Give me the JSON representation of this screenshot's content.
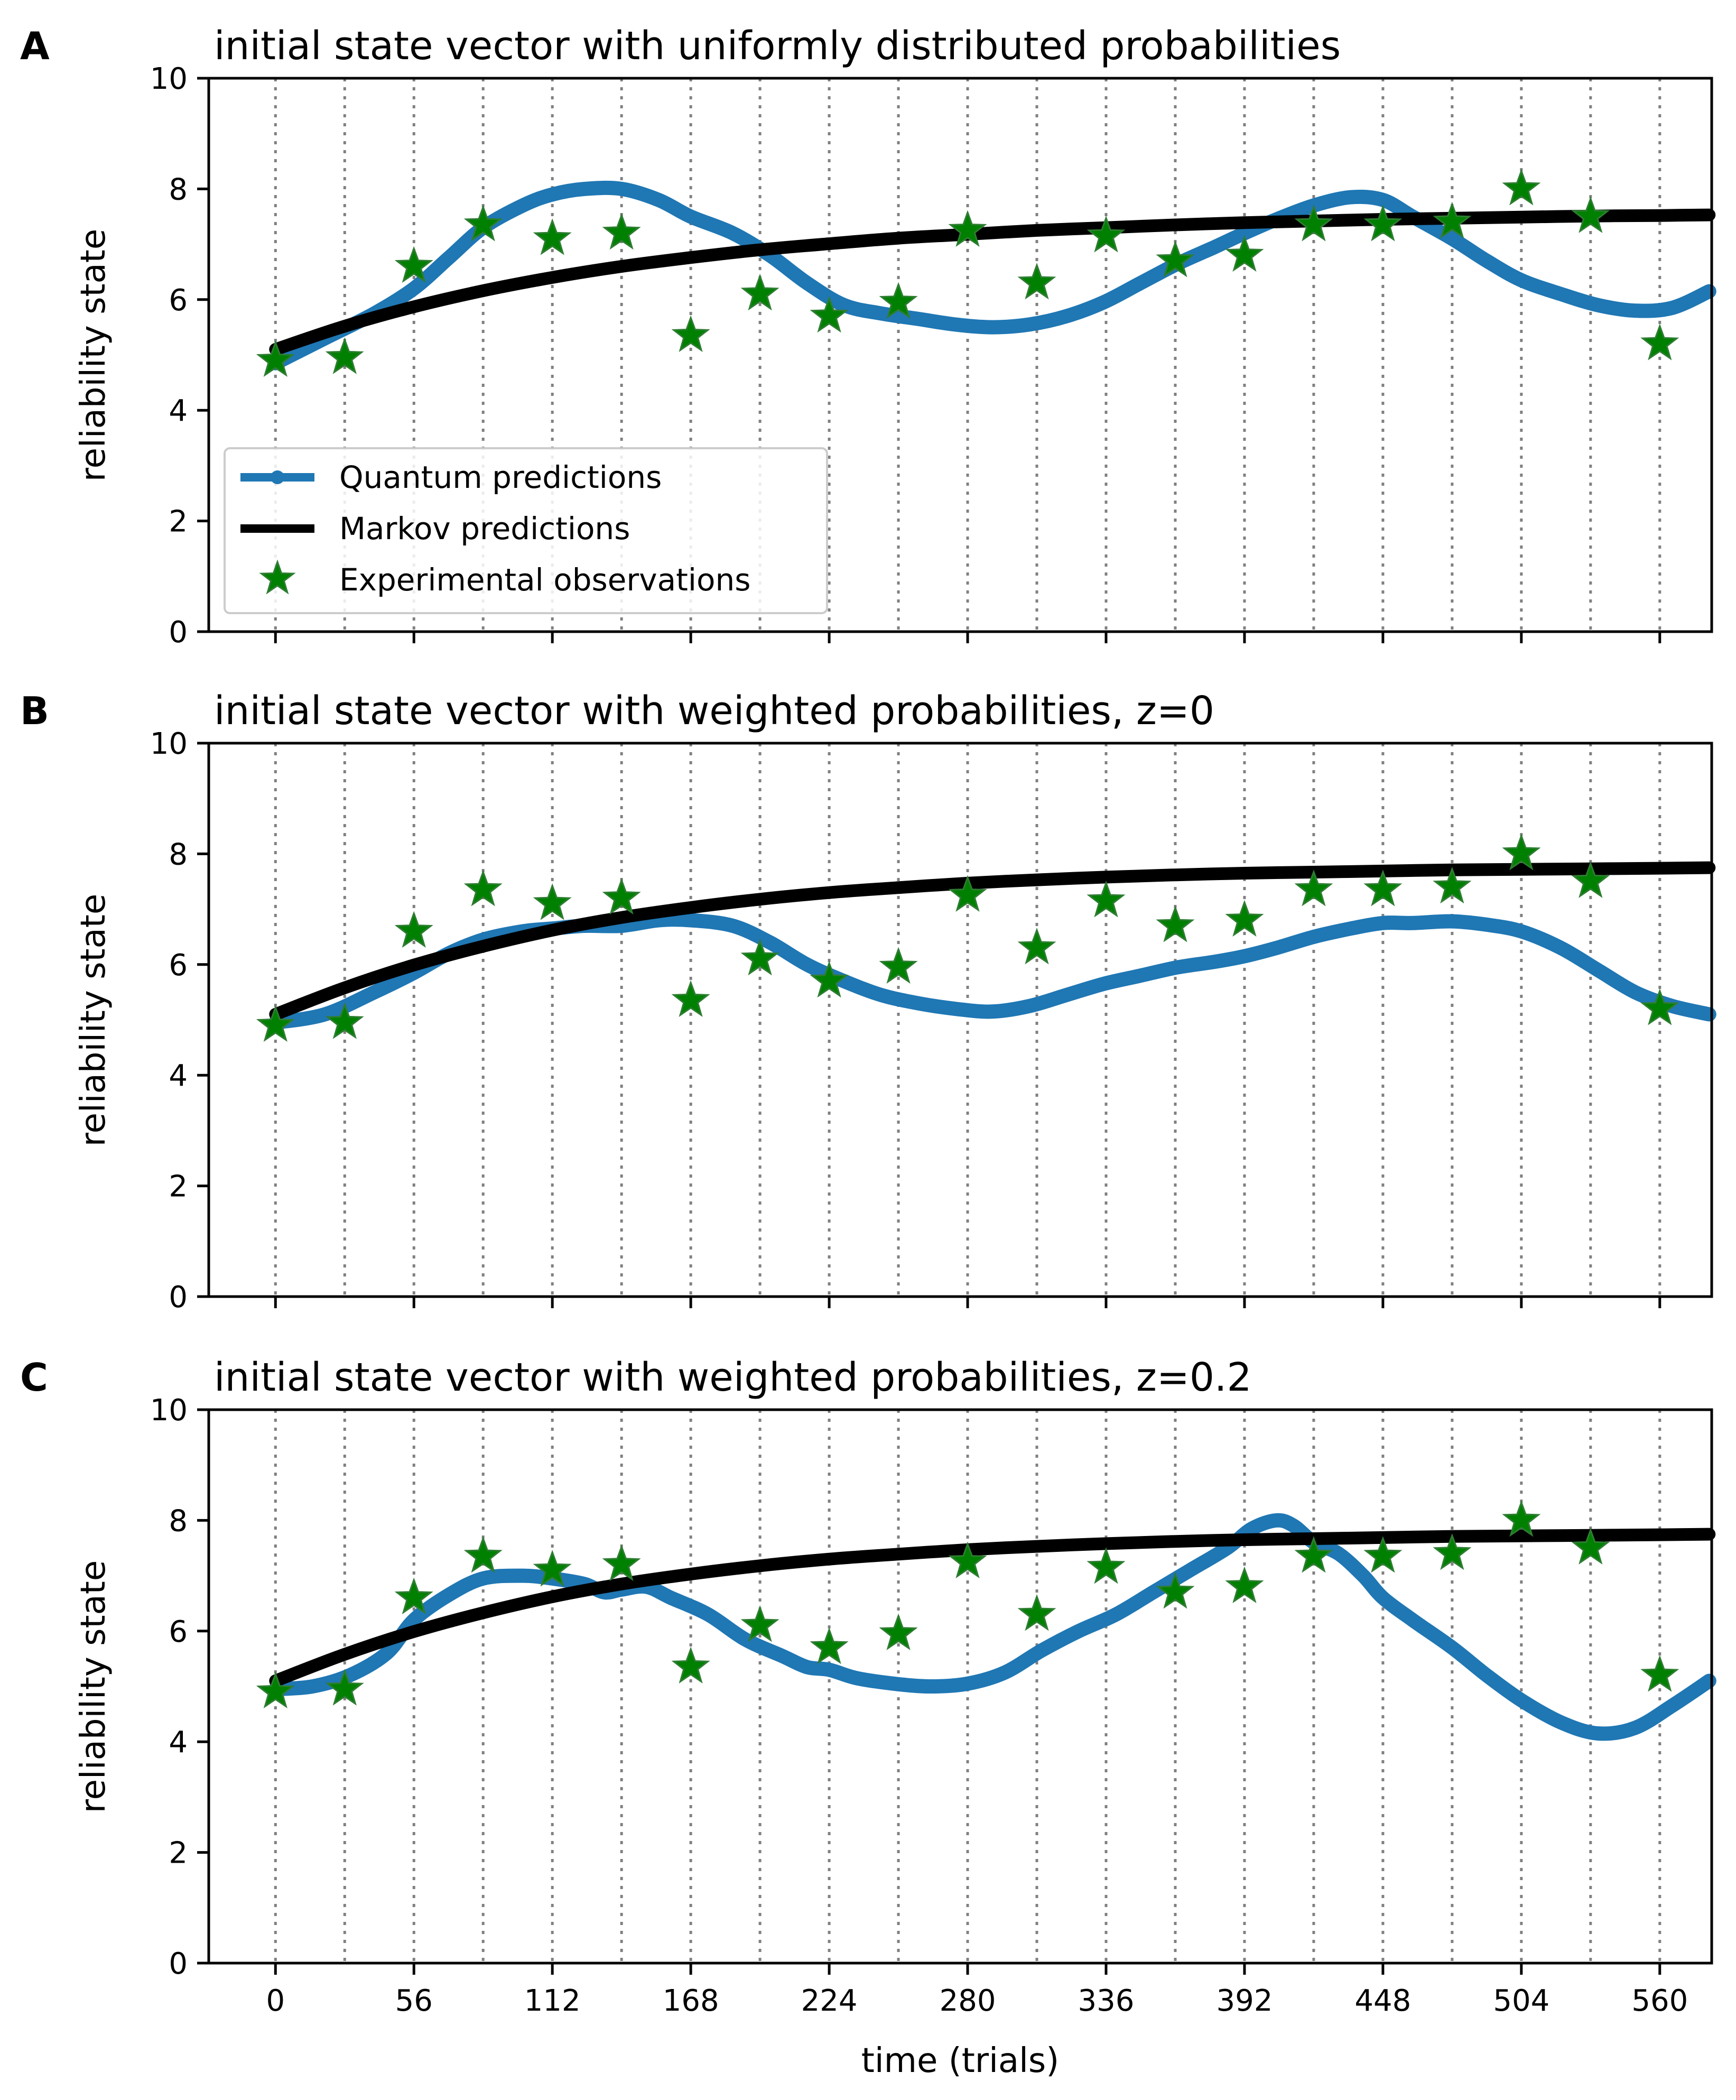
{
  "chart_data": [
    {
      "panel": "A",
      "type": "line",
      "title": "initial state vector with uniformly distributed probabilities",
      "xlabel": "",
      "ylabel": "reliability state",
      "xlim": [
        -27,
        581
      ],
      "ylim": [
        0,
        10
      ],
      "yticks": [
        "0",
        "2",
        "4",
        "6",
        "8",
        "10"
      ],
      "xticks": [
        0,
        56,
        112,
        168,
        224,
        280,
        336,
        392,
        448,
        504,
        560
      ],
      "xtick_labels_visible": false,
      "session_lines": [
        0,
        28,
        56,
        84,
        112,
        140,
        168,
        196,
        224,
        252,
        280,
        308,
        336,
        364,
        392,
        420,
        448,
        476,
        504,
        532,
        560
      ],
      "legend": {
        "position": "lower-left",
        "entries": [
          "Quantum predictions",
          "Markov predictions",
          "Experimental observations"
        ]
      },
      "series": [
        {
          "name": "Quantum predictions",
          "color": "#1f77b4",
          "x": [
            0,
            20,
            40,
            56,
            70,
            84,
            100,
            112,
            125,
            140,
            155,
            168,
            185,
            200,
            215,
            230,
            245,
            260,
            275,
            290,
            305,
            320,
            335,
            350,
            365,
            380,
            392,
            405,
            420,
            435,
            448,
            460,
            476,
            490,
            504,
            520,
            535,
            550,
            565,
            580
          ],
          "values": [
            4.85,
            5.3,
            5.75,
            6.2,
            6.75,
            7.3,
            7.7,
            7.9,
            8.0,
            8.0,
            7.8,
            7.5,
            7.2,
            6.8,
            6.3,
            5.9,
            5.75,
            5.65,
            5.55,
            5.5,
            5.55,
            5.7,
            5.95,
            6.3,
            6.65,
            6.95,
            7.2,
            7.45,
            7.7,
            7.85,
            7.8,
            7.5,
            7.1,
            6.7,
            6.35,
            6.1,
            5.9,
            5.8,
            5.85,
            6.15
          ]
        },
        {
          "name": "Markov predictions",
          "color": "#000000",
          "x": [
            0,
            28,
            56,
            84,
            112,
            140,
            168,
            196,
            224,
            252,
            280,
            308,
            336,
            364,
            392,
            420,
            448,
            476,
            504,
            532,
            560,
            580
          ],
          "values": [
            5.1,
            5.52,
            5.87,
            6.16,
            6.4,
            6.6,
            6.76,
            6.9,
            7.01,
            7.11,
            7.18,
            7.25,
            7.3,
            7.35,
            7.39,
            7.42,
            7.45,
            7.47,
            7.49,
            7.51,
            7.52,
            7.53
          ]
        },
        {
          "name": "Experimental observations",
          "color": "#008000",
          "x": [
            0,
            28,
            56,
            84,
            112,
            140,
            168,
            196,
            224,
            252,
            280,
            308,
            336,
            364,
            392,
            420,
            448,
            476,
            504,
            532,
            560
          ],
          "values": [
            4.9,
            4.95,
            6.6,
            7.35,
            7.1,
            7.2,
            5.35,
            6.1,
            5.7,
            5.95,
            7.25,
            6.3,
            7.15,
            6.7,
            6.8,
            7.35,
            7.35,
            7.4,
            8.0,
            7.5,
            5.2
          ]
        }
      ]
    },
    {
      "panel": "B",
      "type": "line",
      "title": "initial state vector with weighted probabilities, z=0",
      "xlabel": "",
      "ylabel": "reliability state",
      "xlim": [
        -27,
        581
      ],
      "ylim": [
        0,
        10
      ],
      "yticks": [
        "0",
        "2",
        "4",
        "6",
        "8",
        "10"
      ],
      "xticks": [
        0,
        56,
        112,
        168,
        224,
        280,
        336,
        392,
        448,
        504,
        560
      ],
      "xtick_labels_visible": false,
      "session_lines": [
        0,
        28,
        56,
        84,
        112,
        140,
        168,
        196,
        224,
        252,
        280,
        308,
        336,
        364,
        392,
        420,
        448,
        476,
        504,
        532,
        560
      ],
      "series": [
        {
          "name": "Quantum predictions",
          "color": "#1f77b4",
          "x": [
            0,
            20,
            40,
            56,
            70,
            84,
            100,
            112,
            125,
            140,
            155,
            168,
            185,
            200,
            215,
            230,
            245,
            260,
            275,
            290,
            305,
            320,
            335,
            350,
            365,
            380,
            392,
            405,
            420,
            435,
            448,
            460,
            476,
            490,
            504,
            520,
            535,
            550,
            565,
            580
          ],
          "values": [
            4.95,
            5.1,
            5.5,
            5.85,
            6.2,
            6.45,
            6.6,
            6.65,
            6.7,
            6.7,
            6.8,
            6.8,
            6.7,
            6.4,
            6.0,
            5.7,
            5.45,
            5.3,
            5.2,
            5.15,
            5.25,
            5.45,
            5.65,
            5.8,
            5.95,
            6.05,
            6.15,
            6.3,
            6.5,
            6.65,
            6.75,
            6.75,
            6.78,
            6.72,
            6.6,
            6.3,
            5.9,
            5.5,
            5.25,
            5.1
          ]
        },
        {
          "name": "Markov predictions",
          "color": "#000000",
          "x": [
            0,
            28,
            56,
            84,
            112,
            140,
            168,
            196,
            224,
            252,
            280,
            308,
            336,
            364,
            392,
            420,
            448,
            476,
            504,
            532,
            560,
            580
          ],
          "values": [
            5.1,
            5.58,
            5.99,
            6.33,
            6.62,
            6.85,
            7.03,
            7.18,
            7.3,
            7.39,
            7.47,
            7.53,
            7.58,
            7.62,
            7.65,
            7.67,
            7.69,
            7.71,
            7.72,
            7.73,
            7.74,
            7.75
          ]
        },
        {
          "name": "Experimental observations",
          "color": "#008000",
          "x": [
            0,
            28,
            56,
            84,
            112,
            140,
            168,
            196,
            224,
            252,
            280,
            308,
            336,
            364,
            392,
            420,
            448,
            476,
            504,
            532,
            560
          ],
          "values": [
            4.9,
            4.95,
            6.6,
            7.35,
            7.1,
            7.2,
            5.35,
            6.1,
            5.7,
            5.95,
            7.25,
            6.3,
            7.15,
            6.7,
            6.8,
            7.35,
            7.35,
            7.4,
            8.0,
            7.5,
            5.2
          ]
        }
      ]
    },
    {
      "panel": "C",
      "type": "line",
      "title": "initial state vector with weighted probabilities, z=0.2",
      "xlabel": "time (trials)",
      "ylabel": "reliability state",
      "xlim": [
        -27,
        581
      ],
      "ylim": [
        0,
        10
      ],
      "yticks": [
        "0",
        "2",
        "4",
        "6",
        "8",
        "10"
      ],
      "xticks": [
        0,
        56,
        112,
        168,
        224,
        280,
        336,
        392,
        448,
        504,
        560
      ],
      "xtick_labels": [
        "0",
        "56",
        "112",
        "168",
        "224",
        "280",
        "336",
        "392",
        "448",
        "504",
        "560"
      ],
      "xtick_labels_visible": true,
      "session_lines": [
        0,
        28,
        56,
        84,
        112,
        140,
        168,
        196,
        224,
        252,
        280,
        308,
        336,
        364,
        392,
        420,
        448,
        476,
        504,
        532,
        560
      ],
      "series": [
        {
          "name": "Quantum predictions",
          "color": "#1f77b4",
          "x": [
            0,
            15,
            30,
            45,
            56,
            70,
            84,
            100,
            112,
            125,
            133,
            140,
            150,
            160,
            175,
            190,
            205,
            215,
            224,
            235,
            250,
            265,
            280,
            295,
            310,
            325,
            340,
            355,
            370,
            385,
            395,
            405,
            412,
            420,
            430,
            440,
            448,
            460,
            476,
            490,
            504,
            520,
            535,
            550,
            565,
            580
          ],
          "values": [
            4.95,
            5.0,
            5.2,
            5.6,
            6.2,
            6.65,
            6.95,
            7.0,
            6.95,
            6.85,
            6.7,
            6.75,
            6.8,
            6.6,
            6.3,
            5.85,
            5.55,
            5.35,
            5.3,
            5.15,
            5.05,
            5.0,
            5.05,
            5.25,
            5.65,
            6.0,
            6.3,
            6.7,
            7.1,
            7.5,
            7.85,
            8.0,
            7.9,
            7.6,
            7.4,
            7.0,
            6.6,
            6.2,
            5.7,
            5.2,
            4.75,
            4.35,
            4.15,
            4.25,
            4.65,
            5.1
          ]
        },
        {
          "name": "Markov predictions",
          "color": "#000000",
          "x": [
            0,
            28,
            56,
            84,
            112,
            140,
            168,
            196,
            224,
            252,
            280,
            308,
            336,
            364,
            392,
            420,
            448,
            476,
            504,
            532,
            560,
            580
          ],
          "values": [
            5.1,
            5.58,
            5.99,
            6.33,
            6.62,
            6.85,
            7.03,
            7.18,
            7.3,
            7.39,
            7.47,
            7.53,
            7.58,
            7.62,
            7.65,
            7.67,
            7.69,
            7.71,
            7.72,
            7.73,
            7.74,
            7.75
          ]
        },
        {
          "name": "Experimental observations",
          "color": "#008000",
          "x": [
            0,
            28,
            56,
            84,
            112,
            140,
            168,
            196,
            224,
            252,
            280,
            308,
            336,
            364,
            392,
            420,
            448,
            476,
            504,
            532,
            560
          ],
          "values": [
            4.9,
            4.95,
            6.6,
            7.35,
            7.1,
            7.2,
            5.35,
            6.1,
            5.7,
            5.95,
            7.25,
            6.3,
            7.15,
            6.7,
            6.8,
            7.35,
            7.35,
            7.4,
            8.0,
            7.5,
            5.2
          ]
        }
      ]
    }
  ]
}
